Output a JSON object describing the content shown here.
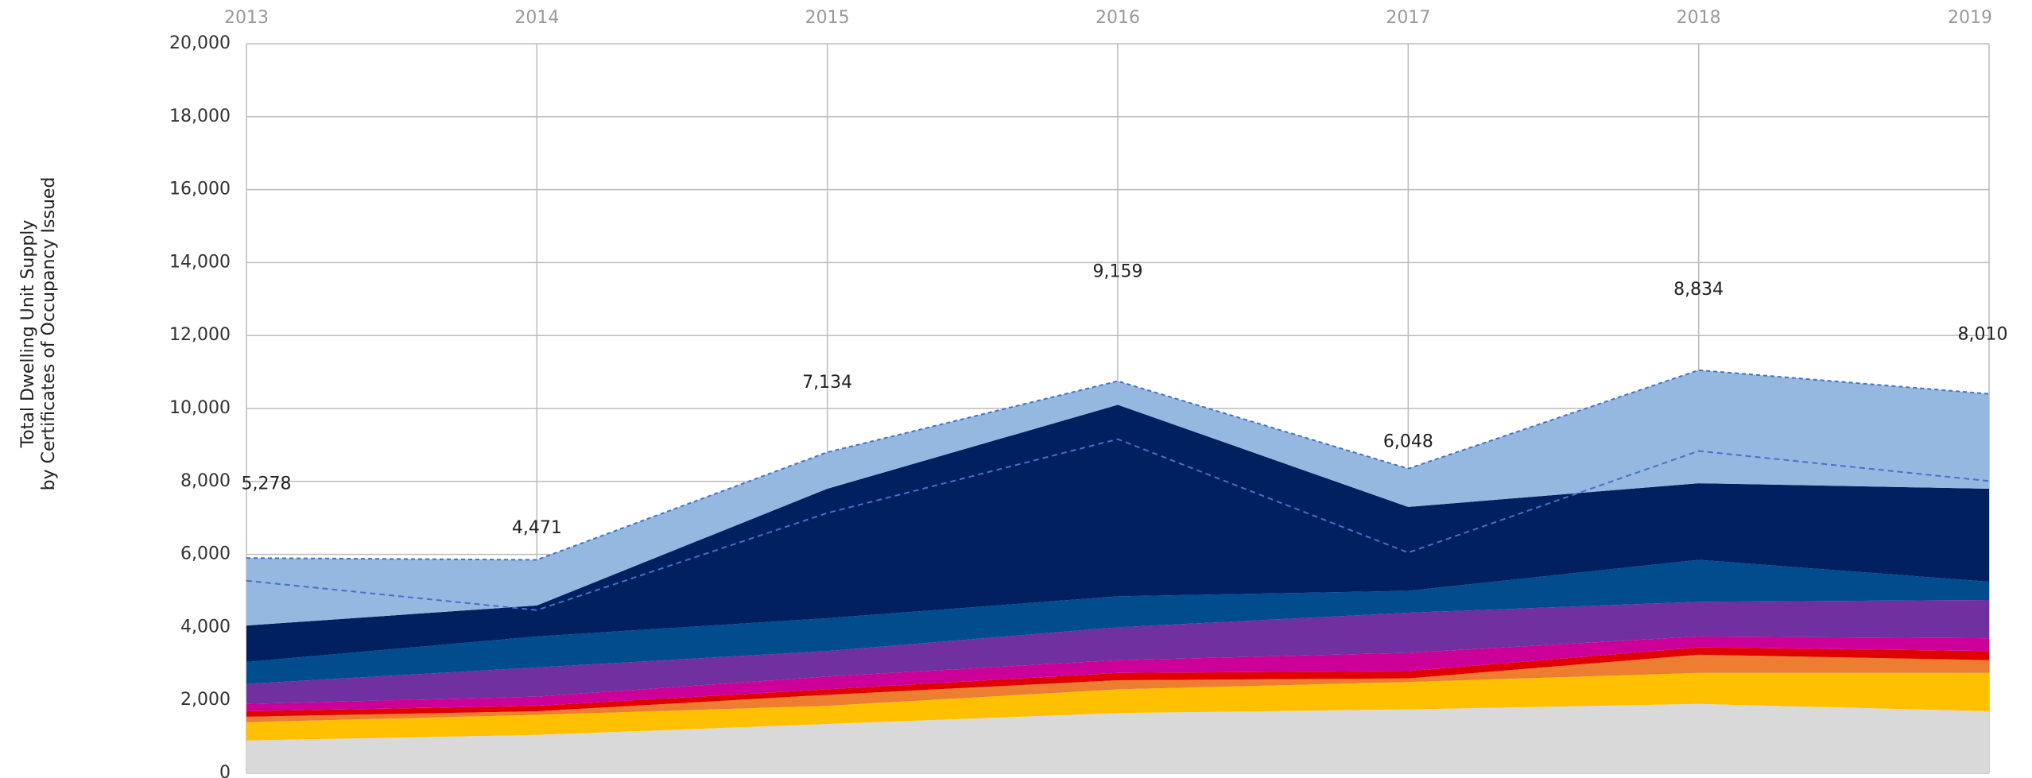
{
  "chart_data": {
    "type": "stacked_area",
    "y_label": [
      "Total Dwelling Unit Supply",
      "by Certificates of Occupancy Issued"
    ],
    "x": [
      2013,
      2014,
      2015,
      2016,
      2017,
      2018,
      2019
    ],
    "xlim": [
      2013,
      2019
    ],
    "xticks": [
      2013,
      2014,
      2015,
      2016,
      2017,
      2018,
      2019
    ],
    "ylim": [
      0,
      20000
    ],
    "yticks": [
      0,
      {
        "value": 2000,
        "label": "2,000"
      },
      {
        "value": 4000,
        "label": "4,000"
      },
      {
        "value": 6000,
        "label": "6,000"
      },
      {
        "value": 8000,
        "label": "8,000"
      },
      {
        "value": 10000,
        "label": "10,000"
      },
      {
        "value": 12000,
        "label": "12,000"
      },
      {
        "value": 14000,
        "label": "14,000"
      },
      {
        "value": 16000,
        "label": "16,000"
      },
      {
        "value": 18000,
        "label": "18,000"
      },
      {
        "value": 20000,
        "label": "20,000"
      }
    ],
    "grid": true,
    "series": [
      {
        "color": "#d9d9d9",
        "values": [
          900,
          1050,
          1350,
          1650,
          1750,
          1900,
          1700
        ]
      },
      {
        "color": "#ffc000",
        "values": [
          500,
          550,
          500,
          650,
          750,
          850,
          1050
        ]
      },
      {
        "color": "#ed7d31",
        "values": [
          150,
          100,
          300,
          250,
          100,
          500,
          350
        ]
      },
      {
        "color": "#e00000",
        "values": [
          150,
          150,
          150,
          200,
          200,
          200,
          250
        ]
      },
      {
        "color": "#cc0099",
        "values": [
          200,
          250,
          350,
          350,
          500,
          300,
          350
        ]
      },
      {
        "color": "#7030a0",
        "values": [
          550,
          800,
          700,
          900,
          1100,
          950,
          1050
        ]
      },
      {
        "color": "#004c8c",
        "values": [
          600,
          850,
          900,
          850,
          600,
          1150,
          500
        ]
      },
      {
        "color": "#002060",
        "values": [
          1000,
          850,
          3550,
          5250,
          2300,
          2100,
          2550
        ]
      },
      {
        "color": "#95b8e0",
        "values": [
          1850,
          1250,
          1000,
          650,
          1050,
          3100,
          2600
        ]
      }
    ],
    "reference_line": {
      "color": "#4472c4",
      "values": [
        5278,
        4471,
        7134,
        9159,
        6048,
        8834,
        8010
      ],
      "value_labels": [
        "5,278",
        "4,471",
        "7,134",
        "9,159",
        "6,048",
        "8,834",
        "8,010"
      ]
    }
  }
}
